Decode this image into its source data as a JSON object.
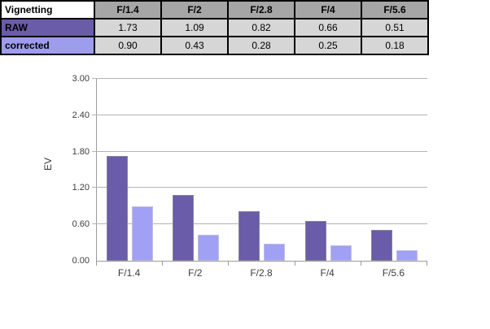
{
  "table": {
    "title": "Vignetting",
    "columns": [
      "F/1.4",
      "F/2",
      "F/2.8",
      "F/4",
      "F/5.6"
    ],
    "rows": [
      {
        "label": "RAW",
        "values": [
          "1.73",
          "1.09",
          "0.82",
          "0.66",
          "0.51"
        ]
      },
      {
        "label": "corrected",
        "values": [
          "0.90",
          "0.43",
          "0.28",
          "0.25",
          "0.18"
        ]
      }
    ],
    "colors": {
      "header_bg": "#A6A6A6",
      "value_cell_bg": "#D6D6D6",
      "raw_row_bg": "#6A5CA8",
      "corrected_row_bg": "#9E9CEC"
    }
  },
  "chart_data": {
    "type": "bar",
    "categories": [
      "F/1.4",
      "F/2",
      "F/2.8",
      "F/4",
      "F/5.6"
    ],
    "series": [
      {
        "name": "RAW",
        "values": [
          1.73,
          1.09,
          0.82,
          0.66,
          0.51
        ],
        "color": "#6A5CA8"
      },
      {
        "name": "corrected",
        "values": [
          0.9,
          0.43,
          0.28,
          0.25,
          0.18
        ],
        "color": "#A0A0F4"
      }
    ],
    "title": "",
    "xlabel": "",
    "ylabel": "EV",
    "ylim": [
      0,
      3.0
    ],
    "ytick_step": 0.6,
    "ytick_labels": [
      "0.00",
      "0.60",
      "1.20",
      "1.80",
      "2.40",
      "3.00"
    ],
    "grid": true,
    "legend_position": "none"
  }
}
